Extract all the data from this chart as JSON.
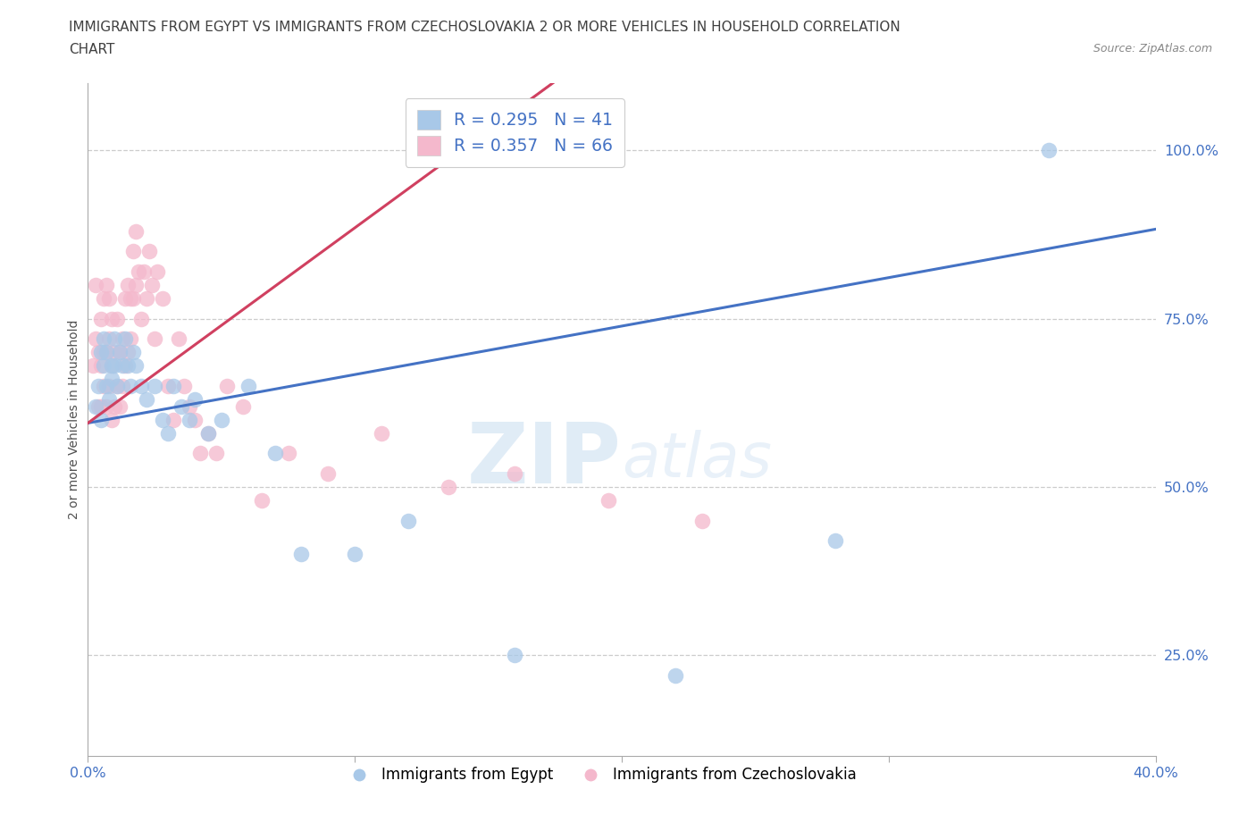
{
  "title_line1": "IMMIGRANTS FROM EGYPT VS IMMIGRANTS FROM CZECHOSLOVAKIA 2 OR MORE VEHICLES IN HOUSEHOLD CORRELATION",
  "title_line2": "CHART",
  "source": "Source: ZipAtlas.com",
  "ylabel": "2 or more Vehicles in Household",
  "xlabel": "",
  "xlim": [
    0.0,
    0.4
  ],
  "ylim": [
    0.1,
    1.1
  ],
  "xticks": [
    0.0,
    0.1,
    0.2,
    0.3,
    0.4
  ],
  "xticklabels": [
    "0.0%",
    "",
    "",
    "",
    "40.0%"
  ],
  "yticks": [
    0.25,
    0.5,
    0.75,
    1.0
  ],
  "yticklabels": [
    "25.0%",
    "50.0%",
    "75.0%",
    "100.0%"
  ],
  "blue_color": "#a8c8e8",
  "pink_color": "#f4b8cc",
  "blue_line_color": "#4472c4",
  "pink_line_color": "#d04060",
  "legend_R_blue": "R = 0.295",
  "legend_N_blue": "N = 41",
  "legend_R_pink": "R = 0.357",
  "legend_N_pink": "N = 66",
  "blue_scatter_x": [
    0.003,
    0.004,
    0.005,
    0.005,
    0.006,
    0.006,
    0.007,
    0.007,
    0.008,
    0.009,
    0.009,
    0.01,
    0.01,
    0.011,
    0.012,
    0.013,
    0.014,
    0.015,
    0.016,
    0.017,
    0.018,
    0.02,
    0.022,
    0.025,
    0.028,
    0.03,
    0.032,
    0.035,
    0.038,
    0.04,
    0.045,
    0.05,
    0.06,
    0.07,
    0.08,
    0.1,
    0.12,
    0.16,
    0.22,
    0.28,
    0.36
  ],
  "blue_scatter_y": [
    0.62,
    0.65,
    0.7,
    0.6,
    0.72,
    0.68,
    0.65,
    0.7,
    0.63,
    0.66,
    0.68,
    0.72,
    0.68,
    0.65,
    0.7,
    0.68,
    0.72,
    0.68,
    0.65,
    0.7,
    0.68,
    0.65,
    0.63,
    0.65,
    0.6,
    0.58,
    0.65,
    0.62,
    0.6,
    0.63,
    0.58,
    0.6,
    0.65,
    0.55,
    0.4,
    0.4,
    0.45,
    0.25,
    0.22,
    0.42,
    1.0
  ],
  "pink_scatter_x": [
    0.002,
    0.003,
    0.003,
    0.004,
    0.004,
    0.005,
    0.005,
    0.005,
    0.006,
    0.006,
    0.006,
    0.007,
    0.007,
    0.007,
    0.008,
    0.008,
    0.008,
    0.009,
    0.009,
    0.009,
    0.01,
    0.01,
    0.011,
    0.011,
    0.012,
    0.012,
    0.013,
    0.013,
    0.014,
    0.014,
    0.015,
    0.015,
    0.016,
    0.016,
    0.017,
    0.017,
    0.018,
    0.018,
    0.019,
    0.02,
    0.021,
    0.022,
    0.023,
    0.024,
    0.025,
    0.026,
    0.028,
    0.03,
    0.032,
    0.034,
    0.036,
    0.038,
    0.04,
    0.042,
    0.045,
    0.048,
    0.052,
    0.058,
    0.065,
    0.075,
    0.09,
    0.11,
    0.135,
    0.16,
    0.195,
    0.23
  ],
  "pink_scatter_y": [
    0.68,
    0.72,
    0.8,
    0.62,
    0.7,
    0.62,
    0.68,
    0.75,
    0.65,
    0.7,
    0.78,
    0.62,
    0.7,
    0.8,
    0.65,
    0.72,
    0.78,
    0.6,
    0.68,
    0.75,
    0.62,
    0.7,
    0.65,
    0.75,
    0.62,
    0.7,
    0.65,
    0.72,
    0.68,
    0.78,
    0.7,
    0.8,
    0.72,
    0.78,
    0.78,
    0.85,
    0.8,
    0.88,
    0.82,
    0.75,
    0.82,
    0.78,
    0.85,
    0.8,
    0.72,
    0.82,
    0.78,
    0.65,
    0.6,
    0.72,
    0.65,
    0.62,
    0.6,
    0.55,
    0.58,
    0.55,
    0.65,
    0.62,
    0.48,
    0.55,
    0.52,
    0.58,
    0.5,
    0.52,
    0.48,
    0.45
  ],
  "watermark_zip": "ZIP",
  "watermark_atlas": "atlas",
  "background_color": "#ffffff",
  "grid_color": "#cccccc",
  "tick_color_y_right": "#4472c4",
  "tick_color_x_bottom": "#4472c4",
  "title_color": "#404040"
}
